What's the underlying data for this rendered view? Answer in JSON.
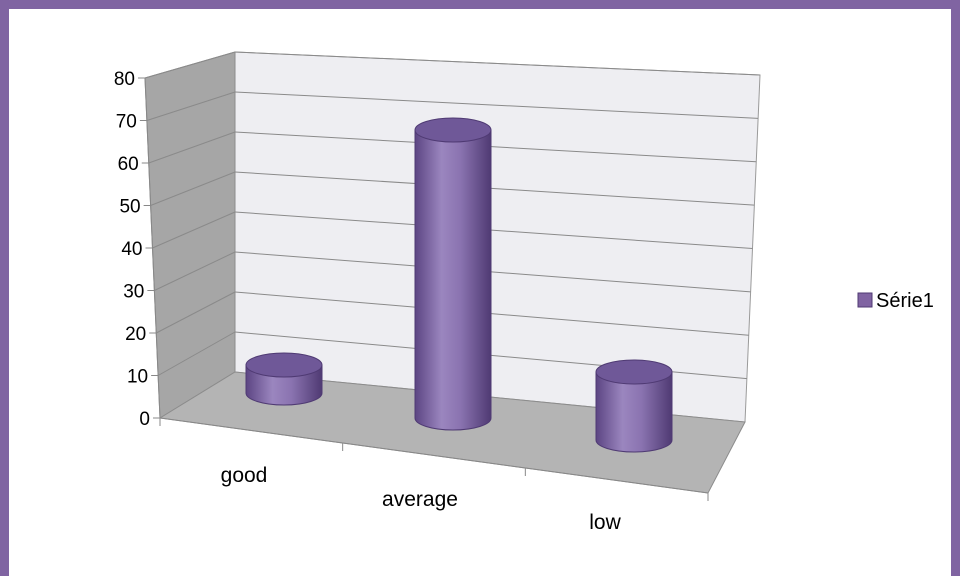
{
  "chart_data": {
    "type": "bar",
    "subtype": "3d-cylinder",
    "title": "",
    "xlabel": "",
    "ylabel": "",
    "categories": [
      "good",
      "average",
      "low"
    ],
    "series": [
      {
        "name": "Série1",
        "values": [
          7,
          72,
          17
        ],
        "color": "#8064a2"
      }
    ],
    "ylim": [
      0,
      80
    ],
    "yticks": [
      0,
      10,
      20,
      30,
      40,
      50,
      60,
      70,
      80
    ],
    "grid": true,
    "legend_position": "right"
  },
  "colors": {
    "frame": "#8064a2",
    "bar": "#8064a2",
    "wall": "#eeeef2",
    "side_wall": "#a6a6a6",
    "floor": "#b4b4b4"
  }
}
